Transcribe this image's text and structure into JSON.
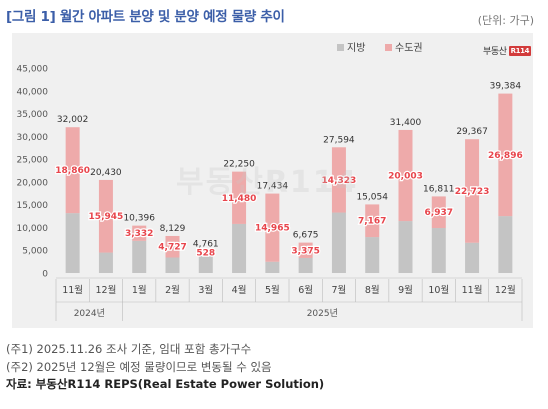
{
  "header": {
    "title": "[그림 1] 월간 아파트 분양 및 분양 예정 물량 추이",
    "unit": "(단위: 가구)"
  },
  "brand": {
    "name": "부동산",
    "badge": "R114"
  },
  "watermark": "부동산R114",
  "notes": {
    "note1": "(주1) 2025.11.26 조사 기준, 임대 포함 총가구수",
    "note2": "(주2) 2025년 12월은 예정 물량이므로 변동될 수 있음",
    "source": "자료: 부동산R114 REPS(Real Estate Power Solution)"
  },
  "chart_data": {
    "type": "bar",
    "stacked": true,
    "categories": [
      "11월",
      "12월",
      "1월",
      "2월",
      "3월",
      "4월",
      "5월",
      "6월",
      "7월",
      "8월",
      "9월",
      "10월",
      "11월",
      "12월"
    ],
    "year_groups": [
      {
        "label": "2024년",
        "count": 2
      },
      {
        "label": "2025년",
        "count": 12
      }
    ],
    "series": [
      {
        "name": "지방",
        "color": "#c4c4c4",
        "values": [
          13142,
          4485,
          7064,
          3402,
          4233,
          10770,
          2469,
          3300,
          13271,
          7887,
          11397,
          9874,
          6644,
          12488
        ]
      },
      {
        "name": "수도권",
        "color": "#eeaaaa",
        "values": [
          18860,
          15945,
          3332,
          4727,
          528,
          11480,
          14965,
          3375,
          14323,
          7167,
          20003,
          6937,
          22723,
          26896
        ]
      }
    ],
    "totals": [
      32002,
      20430,
      10396,
      8129,
      4761,
      22250,
      17434,
      6675,
      27594,
      15054,
      31400,
      16811,
      29367,
      39384
    ],
    "y_ticks": [
      "0",
      "5,000",
      "10,000",
      "15,000",
      "20,000",
      "25,000",
      "30,000",
      "35,000",
      "40,000",
      "45,000"
    ],
    "ylim": [
      0,
      45000
    ],
    "grid": false,
    "legend": "top-right",
    "label_color": "#e8454c"
  }
}
